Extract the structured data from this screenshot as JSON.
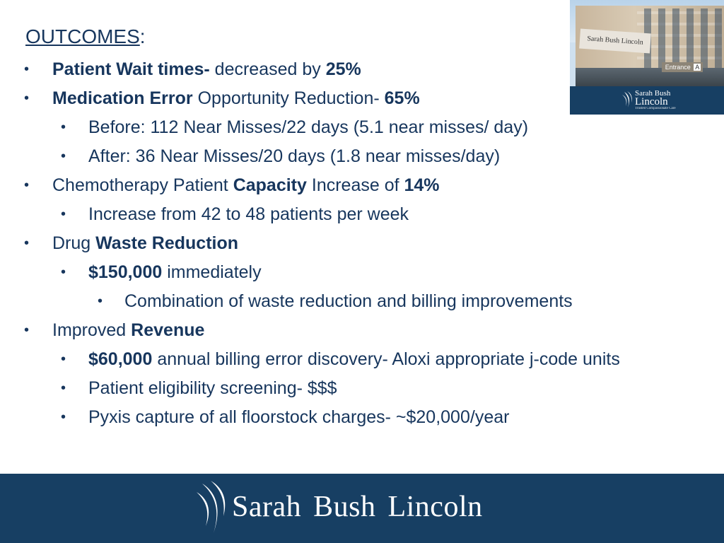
{
  "title": {
    "text": "OUTCOMES",
    "colon": ":"
  },
  "bullets": {
    "wait": {
      "bold": "Patient Wait times-",
      "text": " decreased by ",
      "value": "25%"
    },
    "medication": {
      "bold": "Medication Error",
      "text": " Opportunity Reduction-  ",
      "value": "65%"
    },
    "before": "Before: 112 Near Misses/22 days  (5.1 near misses/ day)",
    "after": "After:  36 Near Misses/20 days (1.8 near misses/day)",
    "chemo": {
      "text": "Chemotherapy Patient ",
      "bold": "Capacity",
      "text2": " Increase of ",
      "value": "14%"
    },
    "chemo_increase": "Increase from 42 to 48 patients per week",
    "drug": {
      "text": "Drug ",
      "bold": "Waste Reduction"
    },
    "immediate": {
      "bold": "$150,000",
      "text": " immediately"
    },
    "combination": "Combination of waste reduction and billing improvements",
    "revenue": {
      "text": "Improved ",
      "bold": "Revenue"
    },
    "billing": {
      "bold": "$60,000",
      "text": " annual billing error discovery- Aloxi appropriate j-code units"
    },
    "eligibility": "Patient eligibility screening- $$$",
    "pyxis": "Pyxis capture of all floorstock charges- ~$20,000/year"
  },
  "photo": {
    "sign": "Sarah Bush Lincoln",
    "entrance": "Entrance",
    "entrance_letter": "A",
    "logo_line1": "Sarah Bush",
    "logo_line2": "Lincoln",
    "logo_tagline": "Trusted Compassionate Care"
  },
  "footer": {
    "brand": "Sarah Bush Lincoln"
  },
  "colors": {
    "text": "#17365d",
    "brand_band": "#173f63",
    "background": "#ffffff"
  },
  "icons": {
    "bullet": "bullet-dot-icon",
    "logo": "wing-logo-icon"
  }
}
